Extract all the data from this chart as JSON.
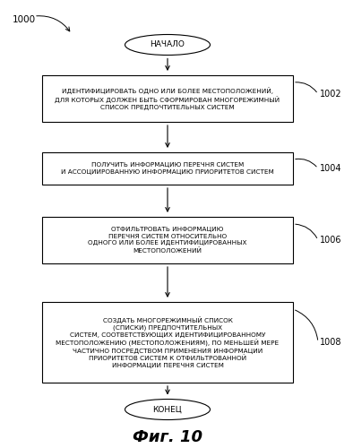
{
  "title": "Фиг. 10",
  "label_1000": "1000",
  "background_color": "#ffffff",
  "start_label": "НАЧАЛО",
  "end_label": "КОНЕЦ",
  "box1_text": "ИДЕНТИФИЦИРОВАТЬ ОДНО ИЛИ БОЛЕЕ МЕСТОПОЛОЖЕНИЙ,\nДЛЯ КОТОРЫХ ДОЛЖЕН БЫТЬ СФОРМИРОВАН МНОГОРЕЖИМНЫЙ\nСПИСОК ПРЕДПОЧТИТЕЛЬНЫХ СИСТЕМ",
  "box1_tag": "1002",
  "box2_text": "ПОЛУЧИТЬ ИНФОРМАЦИЮ ПЕРЕЧНЯ СИСТЕМ\nИ АССОЦИИРОВАННУЮ ИНФОРМАЦИЮ ПРИОРИТЕТОВ СИСТЕМ",
  "box2_tag": "1004",
  "box3_text": "ОТФИЛЬТРОВАТЬ ИНФОРМАЦИЮ\nПЕРЕЧНЯ СИСТЕМ ОТНОСИТЕЛЬНО\nОДНОГО ИЛИ БОЛЕЕ ИДЕНТИФИЦИРОВАННЫХ\nМЕСТОПОЛОЖЕНИЙ",
  "box3_tag": "1006",
  "box4_text": "СОЗДАТЬ МНОГОРЕЖИМНЫЙ СПИСОК\n(СПИСКИ) ПРЕДПОЧТИТЕЛЬНЫХ\nСИСТЕМ, СООТВЕТСТВУЮЩИХ ИДЕНТИФИЦИРОВАННОМУ\nМЕСТОПОЛОЖЕНИЮ (МЕСТОПОЛОЖЕНИЯМ), ПО МЕНЬШЕЙ МЕРЕ\nЧАСТИЧНО ПОСРЕДСТВОМ ПРИМЕНЕНИЯ ИНФОРМАЦИИ\nПРИОРИТЕТОВ СИСТЕМ К ОТФИЛЬТРОВАННОЙ\nИНФОРМАЦИИ ПЕРЕЧНЯ СИСТЕМ",
  "box4_tag": "1008",
  "font_size": 5.2,
  "tag_font_size": 7.0,
  "title_font_size": 13,
  "oval_font_size": 6.5,
  "lw": 0.8
}
